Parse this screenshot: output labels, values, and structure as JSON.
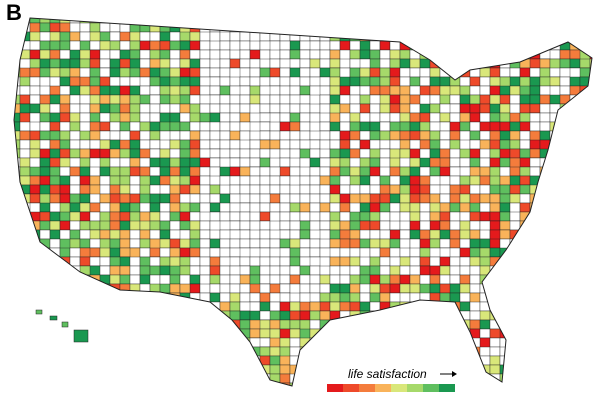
{
  "panel_label": "B",
  "legend": {
    "label": "life satisfaction",
    "colors": [
      "#e41a1c",
      "#ee4a2a",
      "#f47c3c",
      "#f9b35a",
      "#d9e77a",
      "#a6d96a",
      "#5fbf5f",
      "#1a9850"
    ]
  }
}
